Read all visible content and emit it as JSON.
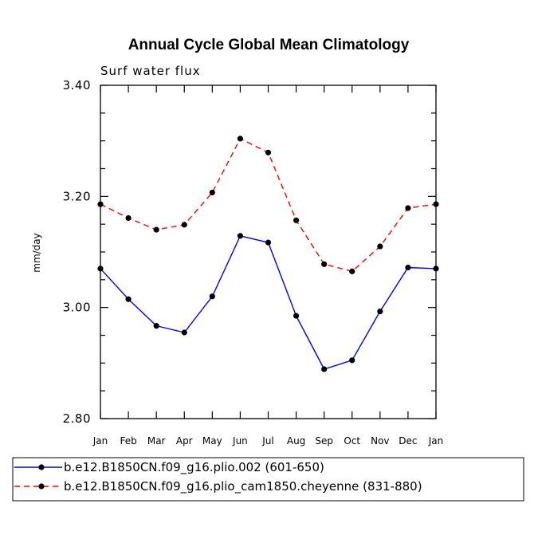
{
  "chart_data": {
    "type": "line",
    "title": "Annual Cycle Global Mean Climatology",
    "subtitle": "Surf water flux",
    "xlabel": "",
    "ylabel": "mm/day",
    "ylim": [
      2.8,
      3.4
    ],
    "yticks": [
      "2.80",
      "3.00",
      "3.20",
      "3.40"
    ],
    "categories": [
      "Jan",
      "Feb",
      "Mar",
      "Apr",
      "May",
      "Jun",
      "Jul",
      "Aug",
      "Sep",
      "Oct",
      "Nov",
      "Dec",
      "Jan"
    ],
    "series": [
      {
        "name": "b.e12.B1850CN.f09_g16.plio.002 (601-650)",
        "color": "#0000ff",
        "dash": "solid",
        "values": [
          3.07,
          3.015,
          2.967,
          2.955,
          3.02,
          3.129,
          3.117,
          2.985,
          2.889,
          2.905,
          2.993,
          3.072,
          3.07
        ]
      },
      {
        "name": "b.e12.B1850CN.f09_g16.plio_cam1850.cheyenne (831-880)",
        "color": "#ff0000",
        "dash": "dashed",
        "values": [
          3.186,
          3.161,
          3.14,
          3.149,
          3.207,
          3.304,
          3.279,
          3.157,
          3.078,
          3.065,
          3.11,
          3.179,
          3.186
        ]
      }
    ]
  }
}
